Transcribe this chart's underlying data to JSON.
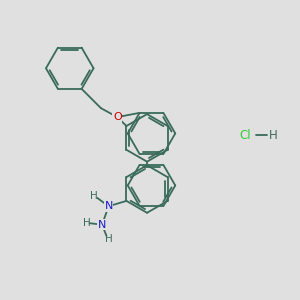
{
  "bg_color": "#e0e0e0",
  "bond_color": "#3a6b5a",
  "n_color": "#1a1acc",
  "o_color": "#cc0000",
  "cl_color": "#33cc33",
  "h_color": "#3a6b5a",
  "font_size": 8.0,
  "bond_lw": 1.3,
  "xlim": [
    0,
    10
  ],
  "ylim": [
    0,
    10
  ]
}
